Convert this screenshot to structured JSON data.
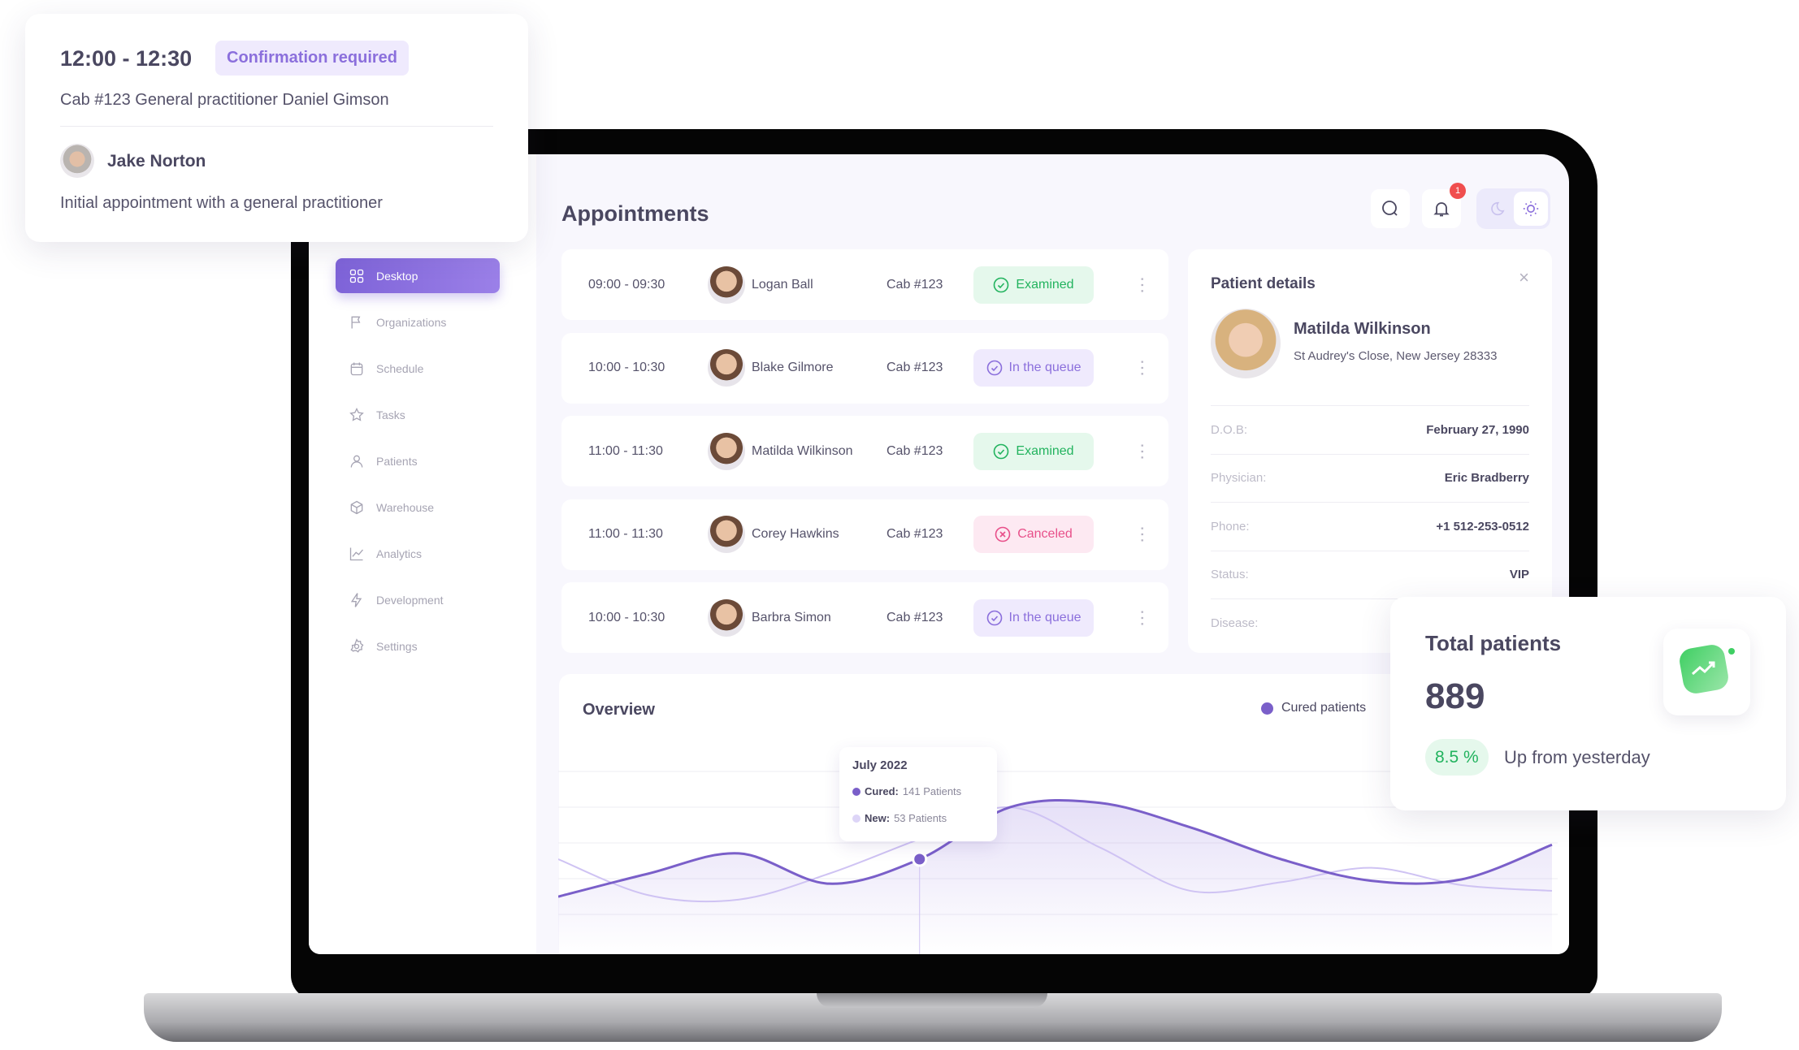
{
  "appointment_card": {
    "time": "12:00 - 12:30",
    "status": "Confirmation required",
    "details": "Cab #123  General practitioner Daniel Gimson",
    "patient": "Jake Norton",
    "note": "Initial appointment with a general practitioner"
  },
  "sidebar": {
    "items": [
      {
        "label": "Desktop",
        "icon": "grid-icon"
      },
      {
        "label": "Organizations",
        "icon": "flag-icon"
      },
      {
        "label": "Schedule",
        "icon": "calendar-icon"
      },
      {
        "label": "Tasks",
        "icon": "star-icon"
      },
      {
        "label": "Patients",
        "icon": "user-icon"
      },
      {
        "label": "Warehouse",
        "icon": "box-icon"
      },
      {
        "label": "Analytics",
        "icon": "chart-icon"
      },
      {
        "label": "Development",
        "icon": "bolt-icon"
      },
      {
        "label": "Settings",
        "icon": "gear-icon"
      }
    ]
  },
  "header": {
    "title": "Appointments",
    "notification_count": "1"
  },
  "appointments": [
    {
      "time": "09:00 - 09:30",
      "name": "Logan Ball",
      "cab": "Cab #123",
      "status": "Examined",
      "kind": "examined"
    },
    {
      "time": "10:00 - 10:30",
      "name": "Blake Gilmore",
      "cab": "Cab #123",
      "status": "In the queue",
      "kind": "queue"
    },
    {
      "time": "11:00 - 11:30",
      "name": "Matilda Wilkinson",
      "cab": "Cab #123",
      "status": "Examined",
      "kind": "examined"
    },
    {
      "time": "11:00 - 11:30",
      "name": "Corey Hawkins",
      "cab": "Cab #123",
      "status": "Canceled",
      "kind": "canceled"
    },
    {
      "time": "10:00 - 10:30",
      "name": "Barbra Simon",
      "cab": "Cab #123",
      "status": "In the queue",
      "kind": "queue"
    }
  ],
  "status_colors": {
    "examined": {
      "fg": "#22b35e",
      "bg": "#e5f8ec"
    },
    "queue": {
      "fg": "#8b6fdc",
      "bg": "#efeafd"
    },
    "canceled": {
      "fg": "#e8508a",
      "bg": "#fde9f2"
    }
  },
  "patient_details": {
    "title": "Patient details",
    "name": "Matilda Wilkinson",
    "address": "St Audrey's Close, New Jersey 28333",
    "fields": [
      {
        "label": "D.O.B:",
        "value": "February 27, 1990"
      },
      {
        "label": "Physician:",
        "value": "Eric Bradberry"
      },
      {
        "label": "Phone:",
        "value": "+1 512-253-0512"
      },
      {
        "label": "Status:",
        "value": "VIP"
      },
      {
        "label": "Disease:",
        "value": ""
      }
    ]
  },
  "total_patients": {
    "title": "Total patients",
    "value": "889",
    "change": "8.5 %",
    "change_label": "Up from yesterday"
  },
  "overview": {
    "title": "Overview",
    "legend": "Cured patients",
    "tooltip": {
      "title": "July 2022",
      "cured_label": "Cured:",
      "cured_value": "141 Patients",
      "new_label": "New:",
      "new_value": "53 Patients"
    }
  },
  "chart_data": {
    "type": "area",
    "grid": true,
    "legend": "top-right",
    "series": [
      {
        "name": "Cured patients",
        "color": "#7a5fc9",
        "values": [
          115,
          131,
          145,
          124,
          141,
          177,
          180,
          163,
          141,
          126,
          127,
          151
        ]
      },
      {
        "color": "#cfc3f3",
        "values": [
          141,
          116,
          113,
          131,
          155,
          177,
          149,
          119,
          125,
          135,
          123,
          119
        ]
      }
    ],
    "highlight_index": 4
  }
}
